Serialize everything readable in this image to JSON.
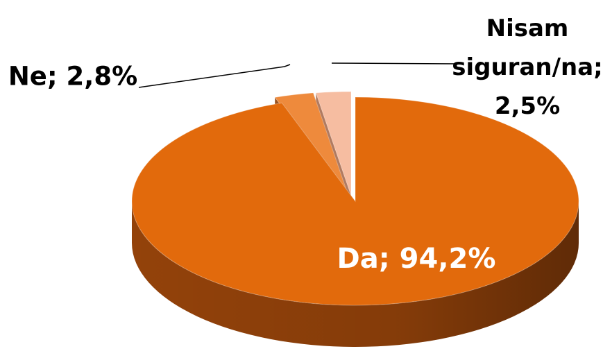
{
  "chart_data": {
    "type": "pie",
    "values": [
      94.2,
      2.8,
      2.5
    ],
    "value_labels": [
      "Da; 94,2%",
      "Ne; 2,8%",
      "Nisam siguran/na; 2,5%"
    ],
    "colors": [
      "#e26a0c",
      "#ee8a3c",
      "#f6bda1"
    ],
    "side_colors": [
      "#93420a",
      "#9a5320",
      "#b07a60"
    ]
  }
}
